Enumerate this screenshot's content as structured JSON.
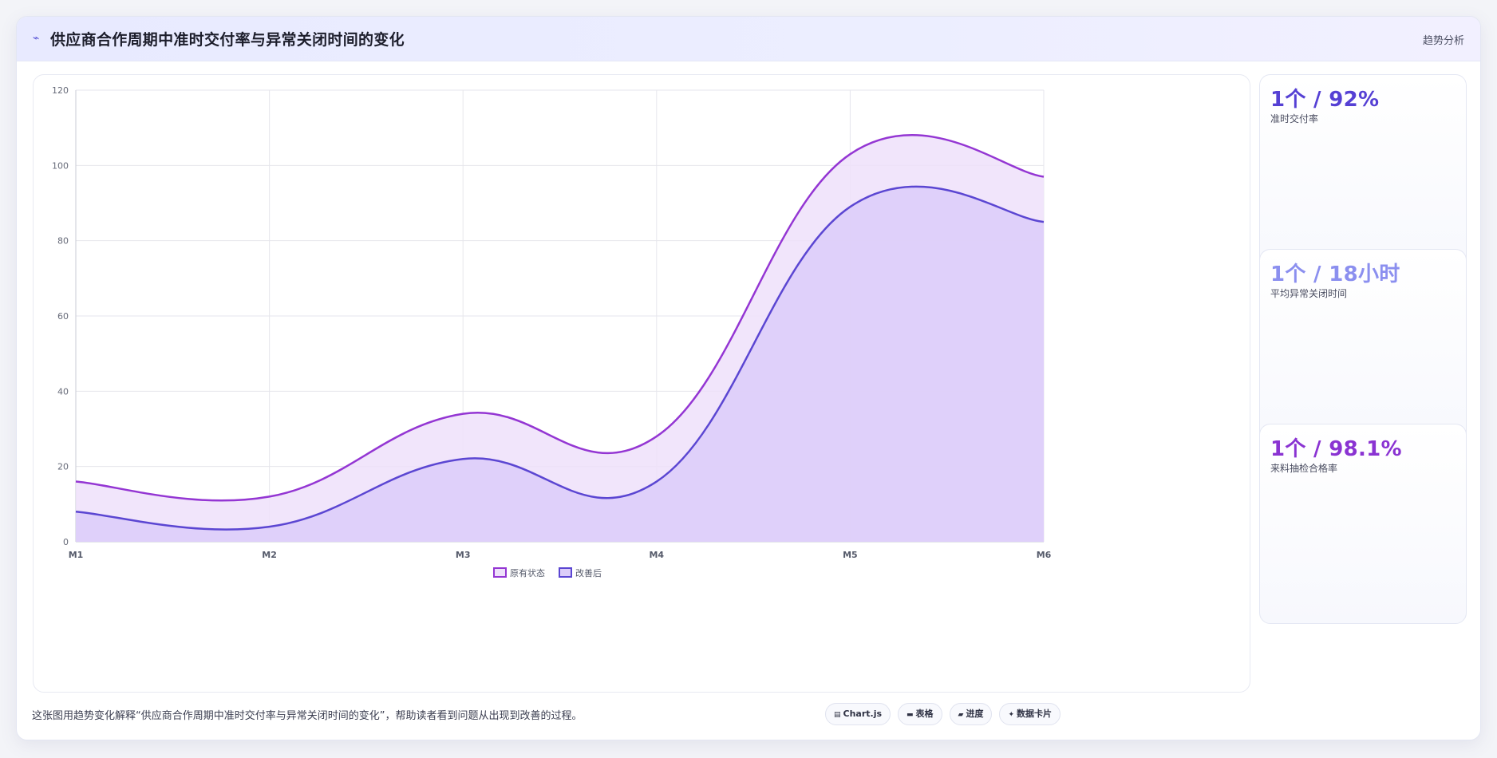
{
  "header": {
    "title": "供应商合作周期中准时交付率与异常关闭时间的变化",
    "tag": "趋势分析",
    "icon": "trend-icon"
  },
  "chart_data": {
    "type": "area",
    "title": "",
    "xlabel": "",
    "ylabel": "",
    "categories": [
      "M1",
      "M2",
      "M3",
      "M4",
      "M5",
      "M6"
    ],
    "ylim": [
      0,
      120
    ],
    "yticks": [
      0,
      20,
      40,
      60,
      80,
      100,
      120
    ],
    "grid": true,
    "legend_position": "bottom",
    "series": [
      {
        "name": "原有状态",
        "values": [
          16,
          12,
          34,
          28,
          103,
          97
        ],
        "color": "#9436d3",
        "fill": "#eee1fa"
      },
      {
        "name": "改善后",
        "values": [
          8,
          4,
          22,
          16,
          89,
          85
        ],
        "color": "#5b46d2",
        "fill": "#dccdf9"
      }
    ]
  },
  "kpis": [
    {
      "value": "1个 / 92%",
      "label": "准时交付率",
      "color": "#5540d4"
    },
    {
      "value": "1个 / 18小时",
      "label": "平均异常关闭时间",
      "color": "#8b8fef"
    },
    {
      "value": "1个 / 98.1%",
      "label": "来料抽检合格率",
      "color": "#8a33d2"
    }
  ],
  "footer": {
    "text": "这张图用趋势变化解释“供应商合作周期中准时交付率与异常关闭时间的变化”，帮助读者看到问题从出现到改善的过程。",
    "pills": [
      {
        "icon": "chart-icon",
        "glyph": "▤",
        "label": "Chart.js"
      },
      {
        "icon": "table-icon",
        "glyph": "▬",
        "label": "表格"
      },
      {
        "icon": "progress-icon",
        "glyph": "▰",
        "label": "进度"
      },
      {
        "icon": "card-icon",
        "glyph": "✦",
        "label": "数据卡片"
      }
    ]
  }
}
